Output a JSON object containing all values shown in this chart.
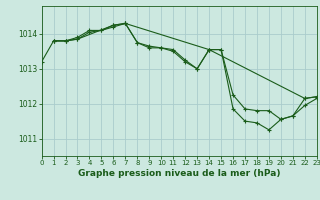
{
  "background_color": "#cce8e0",
  "grid_color": "#aacccc",
  "line_color": "#1a5c1a",
  "marker_color": "#1a5c1a",
  "xlabel": "Graphe pression niveau de la mer (hPa)",
  "xlabel_fontsize": 6.5,
  "xlim": [
    0,
    23
  ],
  "ylim": [
    1010.5,
    1014.8
  ],
  "yticks": [
    1011,
    1012,
    1013,
    1014
  ],
  "xticks": [
    0,
    1,
    2,
    3,
    4,
    5,
    6,
    7,
    8,
    9,
    10,
    11,
    12,
    13,
    14,
    15,
    16,
    17,
    18,
    19,
    20,
    21,
    22,
    23
  ],
  "series1": {
    "x": [
      0,
      1,
      2,
      3,
      4,
      5,
      6,
      7,
      8,
      9,
      10,
      11,
      12,
      13,
      14,
      15,
      16,
      17,
      18,
      19,
      20,
      21,
      22,
      23
    ],
    "y": [
      1013.2,
      1013.8,
      1013.8,
      1013.9,
      1014.1,
      1014.1,
      1014.25,
      1014.3,
      1013.75,
      1013.65,
      1013.6,
      1013.55,
      1013.25,
      1013.0,
      1013.55,
      1013.55,
      1012.25,
      1011.85,
      1011.8,
      1011.8,
      1011.55,
      1011.65,
      1011.95,
      1012.15
    ]
  },
  "series2": {
    "x": [
      1,
      2,
      3,
      4,
      5,
      6,
      7,
      8,
      9,
      10,
      11,
      12,
      13,
      14,
      22,
      23
    ],
    "y": [
      1013.8,
      1013.8,
      1013.85,
      1014.05,
      1014.1,
      1014.2,
      1014.3,
      1013.75,
      1013.6,
      1013.6,
      1013.5,
      1013.2,
      1013.0,
      1013.55,
      1012.15,
      1012.2
    ]
  },
  "series3": {
    "x": [
      1,
      2,
      3,
      6,
      7,
      14,
      15,
      16,
      17,
      18,
      19,
      20,
      21,
      22,
      23
    ],
    "y": [
      1013.8,
      1013.8,
      1013.85,
      1014.25,
      1014.3,
      1013.55,
      1013.55,
      1011.85,
      1011.5,
      1011.45,
      1011.25,
      1011.55,
      1011.65,
      1012.15,
      1012.2
    ]
  }
}
